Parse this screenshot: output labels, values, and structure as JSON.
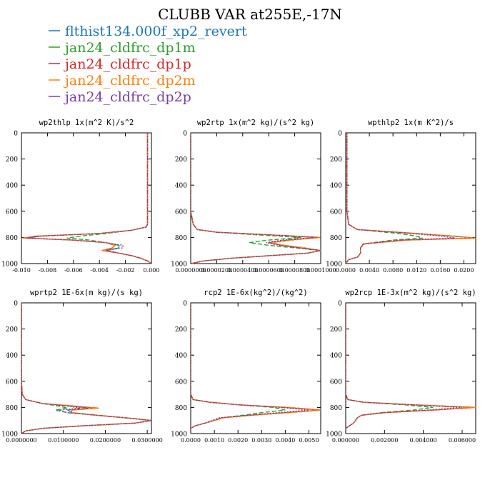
{
  "title": "CLUBB VAR at255E,-17N",
  "legend": [
    {
      "label": "flthist134.000f_xp2_revert",
      "color": "#1f77b4"
    },
    {
      "label": "jan24_cldfrc_dp1m",
      "color": "#2ca02c"
    },
    {
      "label": "jan24_cldfrc_dp1p",
      "color": "#d62728"
    },
    {
      "label": "jan24_cldfrc_dp2m",
      "color": "#ff7f0e"
    },
    {
      "label": "jan24_cldfrc_dp2p",
      "color": "#7b3fa0"
    }
  ],
  "chart_data": [
    {
      "type": "line",
      "title": "wp2thlp  1x(m^2 K)/s^2",
      "xlim": [
        -0.01,
        0.0
      ],
      "ylim": [
        1000,
        0
      ],
      "xticks": [
        "-0.010",
        "-0.008",
        "-0.006",
        "-0.004",
        "-0.002",
        "0.000"
      ],
      "yticks": [
        "0",
        "200",
        "400",
        "600",
        "800",
        "1000"
      ],
      "y": [
        0,
        100,
        200,
        400,
        600,
        700,
        720,
        745,
        770,
        790,
        805,
        820,
        840,
        860,
        880,
        900,
        920,
        940,
        960,
        980,
        1000
      ],
      "series": [
        {
          "values": [
            -0.0003,
            -0.0003,
            -0.0003,
            -0.0003,
            -0.0003,
            -0.0003,
            -0.0004,
            -0.0015,
            -0.004,
            -0.0085,
            -0.0095,
            -0.006,
            -0.0035,
            -0.0025,
            -0.0025,
            -0.0035,
            -0.0025,
            -0.0015,
            -0.0008,
            -0.0003,
            0.0
          ]
        },
        {
          "values": [
            -0.0003,
            -0.0003,
            -0.0003,
            -0.0003,
            -0.0003,
            -0.0003,
            -0.0004,
            -0.0015,
            -0.0035,
            -0.0055,
            -0.0065,
            -0.0048,
            -0.0035,
            -0.0025,
            -0.0025,
            -0.0035,
            -0.0025,
            -0.0015,
            -0.0008,
            -0.0003,
            0.0
          ]
        },
        {
          "values": [
            -0.0003,
            -0.0003,
            -0.0003,
            -0.0003,
            -0.0003,
            -0.0003,
            -0.0004,
            -0.0015,
            -0.004,
            -0.0088,
            -0.0098,
            -0.006,
            -0.0035,
            -0.0028,
            -0.003,
            -0.0038,
            -0.0025,
            -0.0015,
            -0.0008,
            -0.0003,
            0.0
          ]
        },
        {
          "values": [
            -0.0003,
            -0.0003,
            -0.0003,
            -0.0003,
            -0.0003,
            -0.0003,
            -0.0004,
            -0.0015,
            -0.004,
            -0.009,
            -0.0099,
            -0.006,
            -0.0035,
            -0.0028,
            -0.003,
            -0.0038,
            -0.0025,
            -0.0015,
            -0.0008,
            -0.0003,
            0.0
          ]
        },
        {
          "values": [
            -0.0003,
            -0.0003,
            -0.0003,
            -0.0003,
            -0.0003,
            -0.0003,
            -0.0004,
            -0.0015,
            -0.004,
            -0.0086,
            -0.0096,
            -0.006,
            -0.0035,
            -0.0022,
            -0.0022,
            -0.0035,
            -0.0025,
            -0.0015,
            -0.0008,
            -0.0003,
            0.0
          ]
        }
      ]
    },
    {
      "type": "line",
      "title": "wp2rtp  1x(m^2 kg)/(s^2 kg)",
      "xlim": [
        0.0,
        0.0001
      ],
      "ylim": [
        1000,
        0
      ],
      "xticks": [
        "0.0000000",
        "0.0000200",
        "0.0000400",
        "0.0000600",
        "0.0000800",
        "0.0001000"
      ],
      "yticks": [
        "0",
        "200",
        "400",
        "600",
        "800",
        "1000"
      ],
      "y": [
        0,
        200,
        400,
        600,
        700,
        740,
        760,
        780,
        800,
        820,
        840,
        860,
        880,
        900,
        920,
        940,
        960,
        980,
        1000
      ],
      "series": [
        {
          "values": [
            0.0,
            0.0,
            0.0,
            0.0,
            2e-06,
            5e-06,
            2e-05,
            6e-05,
            0.0001,
            7.5e-05,
            6e-05,
            7e-05,
            8.5e-05,
            0.0001,
            9e-05,
            6e-05,
            3e-05,
            1e-05,
            0.0
          ]
        },
        {
          "values": [
            0.0,
            0.0,
            0.0,
            0.0,
            2e-06,
            5e-06,
            2e-05,
            5e-05,
            8.5e-05,
            6e-05,
            4.5e-05,
            6e-05,
            8e-05,
            0.0001,
            9e-05,
            6e-05,
            3e-05,
            1e-05,
            0.0
          ]
        },
        {
          "values": [
            0.0,
            0.0,
            0.0,
            0.0,
            2e-06,
            5e-06,
            2e-05,
            6e-05,
            0.0001,
            7.5e-05,
            6e-05,
            7e-05,
            8.5e-05,
            0.0001,
            9e-05,
            6e-05,
            3e-05,
            1e-05,
            0.0
          ]
        },
        {
          "values": [
            0.0,
            0.0,
            0.0,
            0.0,
            2e-06,
            5e-06,
            2e-05,
            6e-05,
            0.0001,
            7.8e-05,
            6.2e-05,
            7.2e-05,
            8.8e-05,
            0.0001,
            9e-05,
            6e-05,
            3e-05,
            1e-05,
            0.0
          ]
        },
        {
          "values": [
            0.0,
            0.0,
            0.0,
            0.0,
            2e-06,
            5e-06,
            2e-05,
            6e-05,
            9.5e-05,
            7e-05,
            5.8e-05,
            6.8e-05,
            8.3e-05,
            0.0001,
            9e-05,
            6e-05,
            3e-05,
            1e-05,
            0.0
          ]
        }
      ]
    },
    {
      "type": "line",
      "title": "wpthlp2  1x(m K^2)/s",
      "xlim": [
        0.0,
        0.022
      ],
      "ylim": [
        1000,
        0
      ],
      "xticks": [
        "0.0000",
        "0.0040",
        "0.0080",
        "0.0120",
        "0.0160",
        "0.0200"
      ],
      "yticks": [
        "0",
        "200",
        "400",
        "600",
        "800",
        "1000"
      ],
      "y": [
        0,
        200,
        400,
        600,
        700,
        740,
        770,
        790,
        805,
        820,
        850,
        880,
        920,
        950,
        970,
        1000
      ],
      "series": [
        {
          "values": [
            0.0002,
            0.0002,
            0.0002,
            0.0002,
            0.0005,
            0.002,
            0.012,
            0.018,
            0.022,
            0.01,
            0.003,
            0.0025,
            0.0025,
            0.002,
            0.0005,
            0.0
          ]
        },
        {
          "values": [
            0.0002,
            0.0002,
            0.0002,
            0.0002,
            0.0005,
            0.002,
            0.009,
            0.012,
            0.013,
            0.008,
            0.003,
            0.0025,
            0.0025,
            0.002,
            0.0005,
            0.0
          ]
        },
        {
          "values": [
            0.0002,
            0.0002,
            0.0002,
            0.0002,
            0.0005,
            0.002,
            0.012,
            0.018,
            0.022,
            0.01,
            0.003,
            0.0025,
            0.0025,
            0.002,
            0.0005,
            0.0
          ]
        },
        {
          "values": [
            0.0002,
            0.0002,
            0.0002,
            0.0002,
            0.0005,
            0.002,
            0.012,
            0.0185,
            0.022,
            0.0105,
            0.0032,
            0.0025,
            0.0025,
            0.002,
            0.0005,
            0.0
          ]
        },
        {
          "values": [
            0.0002,
            0.0002,
            0.0002,
            0.0002,
            0.0005,
            0.002,
            0.011,
            0.016,
            0.0185,
            0.009,
            0.003,
            0.0025,
            0.0025,
            0.002,
            0.0005,
            0.0
          ]
        }
      ]
    },
    {
      "type": "line",
      "title": "wprtp2  1E-6x(m kg)/(s kg)",
      "xlim": [
        0.0,
        0.031
      ],
      "ylim": [
        1000,
        0
      ],
      "xticks": [
        "0.0000000",
        "0.0100000",
        "0.0200000",
        "0.0300000"
      ],
      "yticks": [
        "0",
        "200",
        "400",
        "600",
        "800",
        "1000"
      ],
      "y": [
        0,
        200,
        400,
        600,
        700,
        740,
        770,
        790,
        805,
        820,
        840,
        860,
        880,
        900,
        920,
        940,
        960,
        980,
        1000
      ],
      "series": [
        {
          "values": [
            0.0,
            0.0,
            0.0,
            0.0,
            0.0002,
            0.001,
            0.005,
            0.012,
            0.016,
            0.011,
            0.012,
            0.018,
            0.025,
            0.031,
            0.027,
            0.015,
            0.005,
            0.001,
            0.0
          ]
        },
        {
          "values": [
            0.0,
            0.0,
            0.0,
            0.0,
            0.0002,
            0.001,
            0.005,
            0.009,
            0.011,
            0.008,
            0.011,
            0.018,
            0.025,
            0.031,
            0.027,
            0.015,
            0.005,
            0.001,
            0.0
          ]
        },
        {
          "values": [
            0.0,
            0.0,
            0.0,
            0.0,
            0.0002,
            0.001,
            0.005,
            0.013,
            0.018,
            0.012,
            0.012,
            0.018,
            0.025,
            0.031,
            0.027,
            0.015,
            0.005,
            0.001,
            0.0
          ]
        },
        {
          "values": [
            0.0,
            0.0,
            0.0,
            0.0,
            0.0002,
            0.001,
            0.005,
            0.013,
            0.0185,
            0.012,
            0.012,
            0.018,
            0.025,
            0.031,
            0.027,
            0.015,
            0.005,
            0.001,
            0.0
          ]
        },
        {
          "values": [
            0.0,
            0.0,
            0.0,
            0.0,
            0.0002,
            0.001,
            0.005,
            0.011,
            0.014,
            0.009,
            0.011,
            0.018,
            0.025,
            0.031,
            0.027,
            0.015,
            0.005,
            0.001,
            0.0
          ]
        }
      ]
    },
    {
      "type": "line",
      "title": "rcp2  1E-6x(kg^2)/(kg^2)",
      "xlim": [
        0.0,
        0.0055
      ],
      "ylim": [
        1000,
        0
      ],
      "xticks": [
        "0.0000",
        "0.0010",
        "0.0020",
        "0.0030",
        "0.0040",
        "0.0050"
      ],
      "yticks": [
        "0",
        "200",
        "400",
        "600",
        "800",
        "1000"
      ],
      "y": [
        0,
        200,
        400,
        600,
        700,
        740,
        760,
        780,
        800,
        820,
        840,
        860,
        880,
        900,
        920,
        940,
        960,
        1000
      ],
      "series": [
        {
          "values": [
            0.0,
            0.0,
            0.0,
            0.0,
            0.0,
            0.0001,
            0.0008,
            0.002,
            0.004,
            0.0055,
            0.004,
            0.0025,
            0.0013,
            0.001,
            0.0006,
            0.0002,
            0.0,
            0.0
          ]
        },
        {
          "values": [
            0.0,
            0.0,
            0.0,
            0.0,
            0.0,
            0.0001,
            0.0008,
            0.002,
            0.0035,
            0.004,
            0.003,
            0.0022,
            0.0013,
            0.001,
            0.0006,
            0.0002,
            0.0,
            0.0
          ]
        },
        {
          "values": [
            0.0,
            0.0,
            0.0,
            0.0,
            0.0,
            0.0001,
            0.0008,
            0.002,
            0.004,
            0.0055,
            0.004,
            0.0025,
            0.0013,
            0.001,
            0.0006,
            0.0002,
            0.0,
            0.0
          ]
        },
        {
          "values": [
            0.0,
            0.0,
            0.0,
            0.0,
            0.0,
            0.0001,
            0.0008,
            0.002,
            0.0042,
            0.0055,
            0.0042,
            0.0026,
            0.0014,
            0.001,
            0.0006,
            0.0002,
            0.0,
            0.0
          ]
        },
        {
          "values": [
            0.0,
            0.0,
            0.0,
            0.0,
            0.0,
            0.0001,
            0.0008,
            0.002,
            0.0038,
            0.005,
            0.0037,
            0.0024,
            0.0012,
            0.0009,
            0.0006,
            0.0002,
            0.0,
            0.0
          ]
        }
      ]
    },
    {
      "type": "line",
      "title": "wp2rcp  1E-3x(m^2 kg)/(s^2 kg)",
      "xlim": [
        0.0,
        0.0067
      ],
      "ylim": [
        1000,
        0
      ],
      "xticks": [
        "0.000000",
        "0.002000",
        "0.004000",
        "0.006000"
      ],
      "yticks": [
        "0",
        "200",
        "400",
        "600",
        "800",
        "1000"
      ],
      "y": [
        0,
        200,
        400,
        600,
        700,
        740,
        760,
        780,
        800,
        820,
        840,
        860,
        880,
        900,
        920,
        940,
        960,
        1000
      ],
      "series": [
        {
          "values": [
            0.0,
            0.0,
            0.0,
            0.0,
            0.0,
            0.0001,
            0.0009,
            0.0035,
            0.0067,
            0.0045,
            0.002,
            0.0008,
            0.0006,
            0.0005,
            0.0004,
            0.0002,
            0.0,
            0.0
          ]
        },
        {
          "values": [
            0.0,
            0.0,
            0.0,
            0.0,
            0.0,
            0.0001,
            0.0009,
            0.003,
            0.0045,
            0.0035,
            0.0018,
            0.0008,
            0.0006,
            0.0005,
            0.0004,
            0.0002,
            0.0,
            0.0
          ]
        },
        {
          "values": [
            0.0,
            0.0,
            0.0,
            0.0,
            0.0,
            0.0001,
            0.0009,
            0.0035,
            0.0067,
            0.0045,
            0.002,
            0.0008,
            0.0006,
            0.0005,
            0.0004,
            0.0002,
            0.0,
            0.0
          ]
        },
        {
          "values": [
            0.0,
            0.0,
            0.0,
            0.0,
            0.0,
            0.0001,
            0.0009,
            0.0036,
            0.0067,
            0.0046,
            0.0021,
            0.0008,
            0.0006,
            0.0005,
            0.0004,
            0.0002,
            0.0,
            0.0
          ]
        },
        {
          "values": [
            0.0,
            0.0,
            0.0,
            0.0,
            0.0,
            0.0001,
            0.0009,
            0.0033,
            0.006,
            0.0042,
            0.0019,
            0.0008,
            0.0006,
            0.0005,
            0.0004,
            0.0002,
            0.0,
            0.0
          ]
        }
      ]
    }
  ]
}
